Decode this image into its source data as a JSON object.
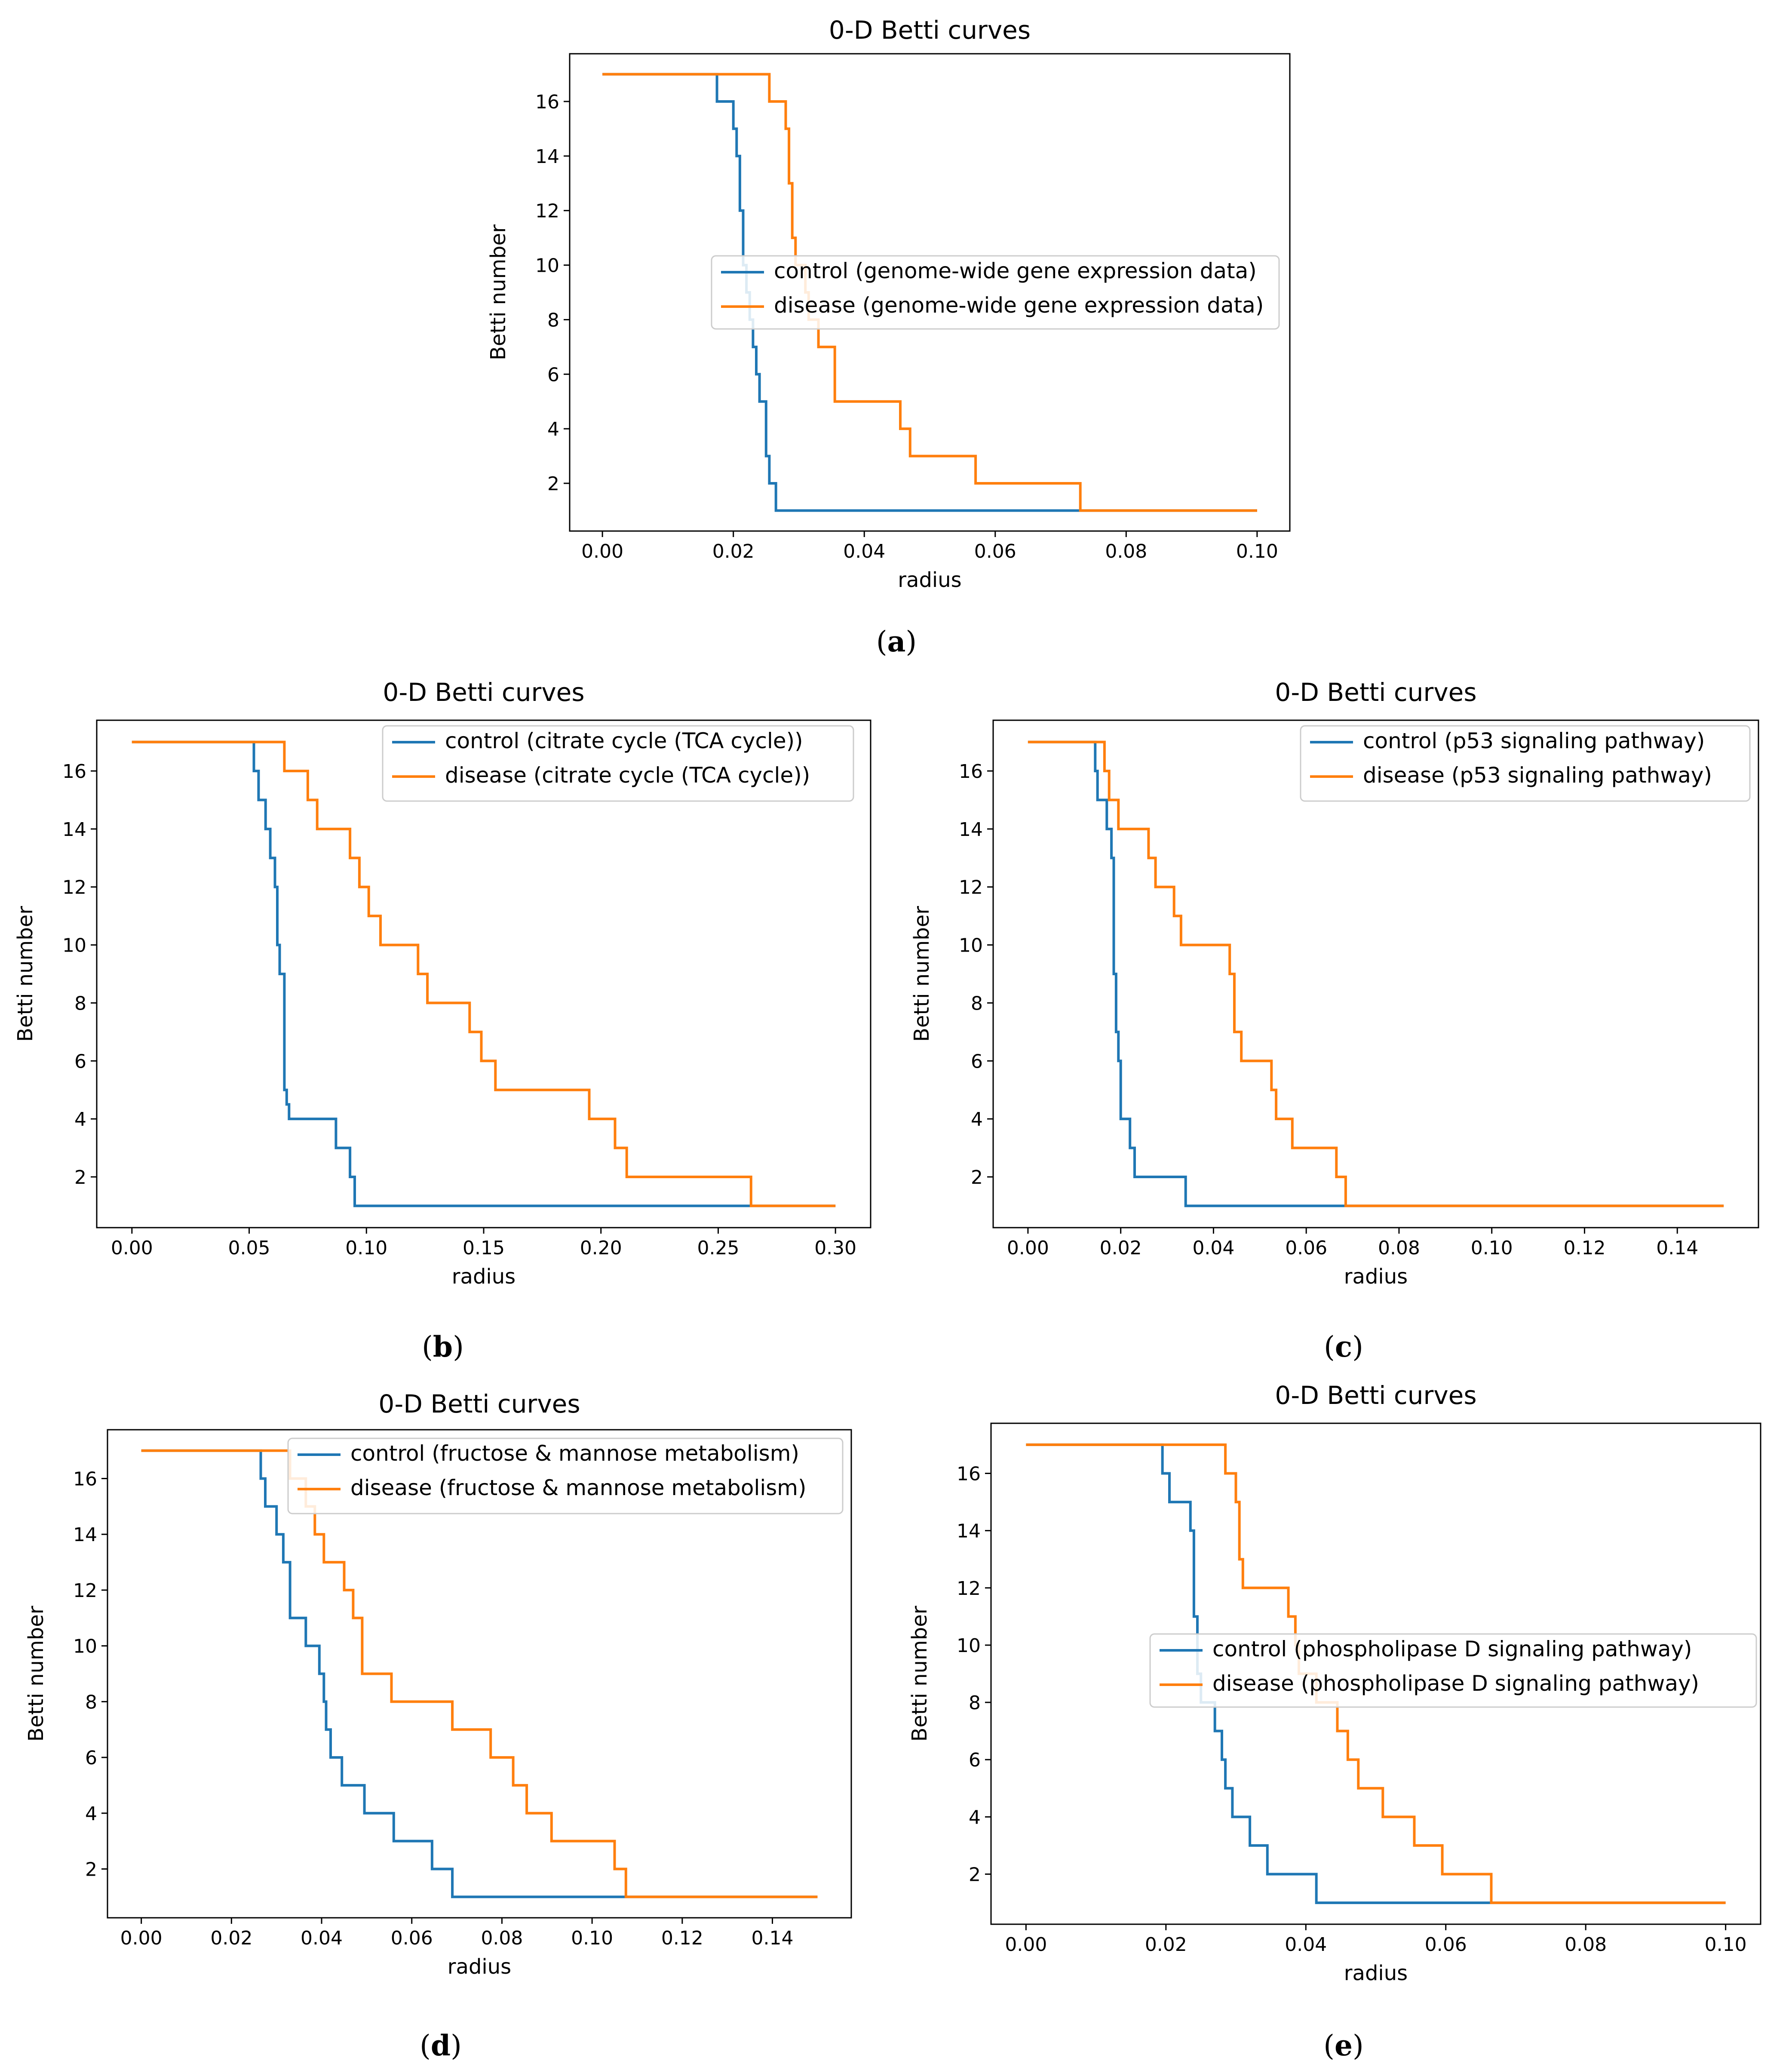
{
  "chart_data": [
    {
      "type": "line",
      "title": "0-D Betti curves",
      "xlabel": "radius",
      "ylabel": "Betti number",
      "caption": "a",
      "xlim": [
        -0.005,
        0.105
      ],
      "ylim": [
        0.25,
        17.75
      ],
      "xticks": [
        0,
        0.02,
        0.04,
        0.06,
        0.08,
        0.1
      ],
      "xtick_labels": [
        "0.00",
        "0.02",
        "0.04",
        "0.06",
        "0.08",
        "0.10"
      ],
      "yticks": [
        2,
        4,
        6,
        8,
        10,
        12,
        14,
        16
      ],
      "ytick_labels": [
        "2",
        "4",
        "6",
        "8",
        "10",
        "12",
        "14",
        "16"
      ],
      "legend_location": "center-right",
      "series": [
        {
          "name": "control (genome-wide gene expression data)",
          "color": "#1f77b4",
          "x": [
            0,
            0.0175,
            0.0175,
            0.02,
            0.02,
            0.0205,
            0.0205,
            0.021,
            0.021,
            0.0215,
            0.0215,
            0.022,
            0.022,
            0.0225,
            0.0225,
            0.023,
            0.023,
            0.0235,
            0.0235,
            0.024,
            0.024,
            0.025,
            0.025,
            0.0255,
            0.0255,
            0.0265,
            0.0265,
            0.1
          ],
          "y": [
            17,
            17,
            16,
            16,
            15,
            15,
            14,
            14,
            12,
            12,
            10,
            10,
            9,
            9,
            8,
            8,
            7,
            7,
            6,
            6,
            5,
            5,
            3,
            3,
            2,
            2,
            1,
            1
          ]
        },
        {
          "name": "disease (genome-wide gene expression data)",
          "color": "#ff7f0e",
          "x": [
            0,
            0.0255,
            0.0255,
            0.028,
            0.028,
            0.0285,
            0.0285,
            0.029,
            0.029,
            0.0295,
            0.0295,
            0.031,
            0.031,
            0.0315,
            0.0315,
            0.0325,
            0.0325,
            0.033,
            0.033,
            0.0355,
            0.0355,
            0.0445,
            0.0445,
            0.0455,
            0.0455,
            0.047,
            0.047,
            0.057,
            0.057,
            0.058,
            0.058,
            0.073,
            0.073,
            0.1
          ],
          "y": [
            17,
            17,
            16,
            16,
            15,
            15,
            13,
            13,
            11,
            11,
            10,
            10,
            9,
            9,
            8,
            8,
            8,
            8,
            7,
            7,
            5,
            5,
            5,
            5,
            4,
            4,
            3,
            3,
            2,
            2,
            2,
            2,
            1,
            1
          ]
        }
      ]
    },
    {
      "type": "line",
      "title": "0-D Betti curves",
      "xlabel": "radius",
      "ylabel": "Betti number",
      "caption": "b",
      "xlim": [
        -0.015,
        0.315
      ],
      "ylim": [
        0.25,
        17.75
      ],
      "xticks": [
        0,
        0.05,
        0.1,
        0.15,
        0.2,
        0.25,
        0.3
      ],
      "xtick_labels": [
        "0.00",
        "0.05",
        "0.10",
        "0.15",
        "0.20",
        "0.25",
        "0.30"
      ],
      "yticks": [
        2,
        4,
        6,
        8,
        10,
        12,
        14,
        16
      ],
      "ytick_labels": [
        "2",
        "4",
        "6",
        "8",
        "10",
        "12",
        "14",
        "16"
      ],
      "legend_location": "upper-right",
      "series": [
        {
          "name": "control (citrate cycle (TCA cycle))",
          "color": "#1f77b4",
          "x": [
            0,
            0.052,
            0.052,
            0.054,
            0.054,
            0.057,
            0.057,
            0.059,
            0.059,
            0.061,
            0.061,
            0.062,
            0.062,
            0.063,
            0.063,
            0.065,
            0.065,
            0.066,
            0.066,
            0.067,
            0.067,
            0.087,
            0.087,
            0.093,
            0.093,
            0.095,
            0.095,
            0.3
          ],
          "y": [
            17,
            17,
            16,
            16,
            15,
            15,
            14,
            14,
            13,
            13,
            12,
            12,
            10,
            10,
            9,
            9,
            5,
            5,
            4.5,
            4.5,
            4,
            4,
            3,
            3,
            2,
            2,
            1,
            1
          ]
        },
        {
          "name": "disease (citrate cycle (TCA cycle))",
          "color": "#ff7f0e",
          "x": [
            0,
            0.065,
            0.065,
            0.075,
            0.075,
            0.079,
            0.079,
            0.093,
            0.093,
            0.097,
            0.097,
            0.101,
            0.101,
            0.106,
            0.106,
            0.122,
            0.122,
            0.126,
            0.126,
            0.144,
            0.144,
            0.149,
            0.149,
            0.155,
            0.155,
            0.195,
            0.195,
            0.206,
            0.206,
            0.211,
            0.211,
            0.264,
            0.264,
            0.3
          ],
          "y": [
            17,
            17,
            16,
            16,
            15,
            15,
            14,
            14,
            13,
            13,
            12,
            12,
            11,
            11,
            10,
            10,
            9,
            9,
            8,
            8,
            7,
            7,
            6,
            6,
            5,
            5,
            4,
            4,
            3,
            3,
            2,
            2,
            1,
            1
          ]
        }
      ]
    },
    {
      "type": "line",
      "title": "0-D Betti curves",
      "xlabel": "radius",
      "ylabel": "Betti number",
      "caption": "c",
      "xlim": [
        -0.0075,
        0.1575
      ],
      "ylim": [
        0.25,
        17.75
      ],
      "xticks": [
        0,
        0.02,
        0.04,
        0.06,
        0.08,
        0.1,
        0.12,
        0.14
      ],
      "xtick_labels": [
        "0.00",
        "0.02",
        "0.04",
        "0.06",
        "0.08",
        "0.10",
        "0.12",
        "0.14"
      ],
      "yticks": [
        2,
        4,
        6,
        8,
        10,
        12,
        14,
        16
      ],
      "ytick_labels": [
        "2",
        "4",
        "6",
        "8",
        "10",
        "12",
        "14",
        "16"
      ],
      "legend_location": "upper-right",
      "series": [
        {
          "name": "control (p53 signaling pathway)",
          "color": "#1f77b4",
          "x": [
            0,
            0.0145,
            0.0145,
            0.015,
            0.015,
            0.017,
            0.017,
            0.018,
            0.018,
            0.0185,
            0.0185,
            0.019,
            0.019,
            0.0195,
            0.0195,
            0.02,
            0.02,
            0.022,
            0.022,
            0.023,
            0.023,
            0.0255,
            0.0255,
            0.034,
            0.034,
            0.15
          ],
          "y": [
            17,
            17,
            16,
            16,
            15,
            15,
            14,
            14,
            13,
            13,
            9,
            9,
            7,
            7,
            6,
            6,
            4,
            4,
            3,
            3,
            2,
            2,
            2,
            2,
            1,
            1
          ]
        },
        {
          "name": "disease (p53 signaling pathway)",
          "color": "#ff7f0e",
          "x": [
            0,
            0.0165,
            0.0165,
            0.0175,
            0.0175,
            0.0195,
            0.0195,
            0.025,
            0.025,
            0.026,
            0.026,
            0.0275,
            0.0275,
            0.0315,
            0.0315,
            0.033,
            0.033,
            0.0425,
            0.0425,
            0.0435,
            0.0435,
            0.0445,
            0.0445,
            0.046,
            0.046,
            0.0525,
            0.0525,
            0.0535,
            0.0535,
            0.057,
            0.057,
            0.0665,
            0.0665,
            0.0685,
            0.0685,
            0.1115,
            0.1115,
            0.15
          ],
          "y": [
            17,
            17,
            16,
            16,
            15,
            15,
            14,
            14,
            14,
            14,
            13,
            13,
            12,
            12,
            11,
            11,
            10,
            10,
            10,
            10,
            9,
            9,
            7,
            7,
            6,
            6,
            5,
            5,
            4,
            4,
            3,
            3,
            2,
            2,
            1,
            1,
            1,
            1
          ]
        }
      ]
    },
    {
      "type": "line",
      "title": "0-D Betti curves",
      "xlabel": "radius",
      "ylabel": "Betti number",
      "caption": "d",
      "xlim": [
        -0.0075,
        0.1575
      ],
      "ylim": [
        0.25,
        17.75
      ],
      "xticks": [
        0,
        0.02,
        0.04,
        0.06,
        0.08,
        0.1,
        0.12,
        0.14
      ],
      "xtick_labels": [
        "0.00",
        "0.02",
        "0.04",
        "0.06",
        "0.08",
        "0.10",
        "0.12",
        "0.14"
      ],
      "yticks": [
        2,
        4,
        6,
        8,
        10,
        12,
        14,
        16
      ],
      "ytick_labels": [
        "2",
        "4",
        "6",
        "8",
        "10",
        "12",
        "14",
        "16"
      ],
      "legend_location": "upper-right",
      "series": [
        {
          "name": "control (fructose & mannose metabolism)",
          "color": "#1f77b4",
          "x": [
            0,
            0.0265,
            0.0265,
            0.0275,
            0.0275,
            0.03,
            0.03,
            0.0315,
            0.0315,
            0.033,
            0.033,
            0.0365,
            0.0365,
            0.0395,
            0.0395,
            0.0405,
            0.0405,
            0.041,
            0.041,
            0.042,
            0.042,
            0.0445,
            0.0445,
            0.0495,
            0.0495,
            0.056,
            0.056,
            0.0645,
            0.0645,
            0.069,
            0.069,
            0.15
          ],
          "y": [
            17,
            17,
            16,
            16,
            15,
            15,
            14,
            14,
            13,
            13,
            11,
            11,
            10,
            10,
            9,
            9,
            8,
            8,
            7,
            7,
            6,
            6,
            5,
            5,
            4,
            4,
            3,
            3,
            2,
            2,
            1,
            1
          ]
        },
        {
          "name": "disease (fructose & mannose metabolism)",
          "color": "#ff7f0e",
          "x": [
            0,
            0.033,
            0.033,
            0.0365,
            0.0365,
            0.0385,
            0.0385,
            0.0405,
            0.0405,
            0.045,
            0.045,
            0.047,
            0.047,
            0.049,
            0.049,
            0.0555,
            0.0555,
            0.069,
            0.069,
            0.0775,
            0.0775,
            0.0825,
            0.0825,
            0.0855,
            0.0855,
            0.091,
            0.091,
            0.105,
            0.105,
            0.1075,
            0.1075,
            0.15
          ],
          "y": [
            17,
            17,
            16,
            16,
            15,
            15,
            14,
            14,
            13,
            13,
            12,
            12,
            11,
            11,
            9,
            9,
            8,
            8,
            7,
            7,
            6,
            6,
            5,
            5,
            4,
            4,
            3,
            3,
            2,
            2,
            1,
            1
          ]
        }
      ]
    },
    {
      "type": "line",
      "title": "0-D Betti curves",
      "xlabel": "radius",
      "ylabel": "Betti number",
      "caption": "e",
      "xlim": [
        -0.005,
        0.105
      ],
      "ylim": [
        0.25,
        17.75
      ],
      "xticks": [
        0,
        0.02,
        0.04,
        0.06,
        0.08,
        0.1
      ],
      "xtick_labels": [
        "0.00",
        "0.02",
        "0.04",
        "0.06",
        "0.08",
        "0.10"
      ],
      "yticks": [
        2,
        4,
        6,
        8,
        10,
        12,
        14,
        16
      ],
      "ytick_labels": [
        "2",
        "4",
        "6",
        "8",
        "10",
        "12",
        "14",
        "16"
      ],
      "legend_location": "center-right",
      "series": [
        {
          "name": "control (phospholipase D signaling pathway)",
          "color": "#1f77b4",
          "x": [
            0,
            0.0195,
            0.0195,
            0.0205,
            0.0205,
            0.0235,
            0.0235,
            0.024,
            0.024,
            0.0245,
            0.0245,
            0.025,
            0.025,
            0.027,
            0.027,
            0.028,
            0.028,
            0.0285,
            0.0285,
            0.0295,
            0.0295,
            0.032,
            0.032,
            0.0345,
            0.0345,
            0.0415,
            0.0415,
            0.0525,
            0.0525,
            0.1
          ],
          "y": [
            17,
            17,
            16,
            16,
            15,
            15,
            14,
            14,
            11,
            11,
            9,
            9,
            8,
            8,
            7,
            7,
            6,
            6,
            5,
            5,
            4,
            4,
            3,
            3,
            2,
            2,
            1,
            1,
            1,
            1
          ]
        },
        {
          "name": "disease (phospholipase D signaling pathway)",
          "color": "#ff7f0e",
          "x": [
            0,
            0.0285,
            0.0285,
            0.03,
            0.03,
            0.0305,
            0.0305,
            0.031,
            0.031,
            0.034,
            0.034,
            0.0375,
            0.0375,
            0.0385,
            0.0385,
            0.039,
            0.039,
            0.0415,
            0.0415,
            0.0445,
            0.0445,
            0.046,
            0.046,
            0.0475,
            0.0475,
            0.051,
            0.051,
            0.0555,
            0.0555,
            0.0595,
            0.0595,
            0.0665,
            0.0665,
            0.076,
            0.076,
            0.1
          ],
          "y": [
            17,
            17,
            16,
            16,
            15,
            15,
            13,
            13,
            12,
            12,
            12,
            12,
            11,
            11,
            10,
            10,
            9,
            9,
            8,
            8,
            7,
            7,
            6,
            6,
            5,
            5,
            4,
            4,
            3,
            3,
            2,
            2,
            1,
            1,
            1,
            1
          ]
        }
      ]
    }
  ]
}
